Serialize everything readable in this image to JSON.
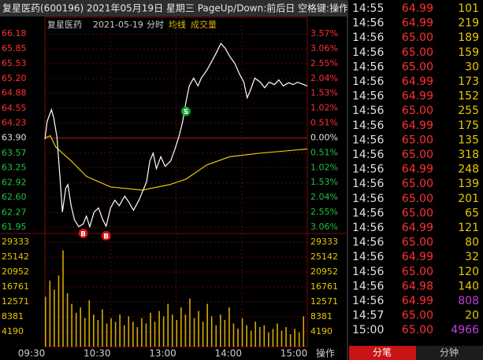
{
  "header": {
    "title": "复星医药(600196) 2021年05月19日 星期三 PageUp/Down:前后日 空格键:操作"
  },
  "chart_data": {
    "type": "line",
    "stock": "复星医药",
    "date": "2021-05-19",
    "mode": "分时",
    "xlim": [
      0,
      240
    ],
    "xticks": [
      {
        "value": 0,
        "label": "09:30"
      },
      {
        "value": 60,
        "label": "10:30"
      },
      {
        "value": 120,
        "label": "13:00"
      },
      {
        "value": 180,
        "label": "14:00"
      },
      {
        "value": 240,
        "label": "15:00"
      }
    ],
    "ylim": [
      61.95,
      66.18
    ],
    "yticks": [
      66.18,
      65.85,
      65.53,
      {
        "value": 65.2,
        "label": "65.20"
      },
      64.88,
      64.55,
      64.23,
      {
        "value": 63.9,
        "label": "63.90"
      },
      63.57,
      63.25,
      62.92,
      {
        "value": 62.6,
        "label": "62.60"
      },
      62.27,
      61.95
    ],
    "y2lim": [
      -3.06,
      3.57
    ],
    "y2ticks": [
      {
        "value": 3.57,
        "label": "3.57%"
      },
      {
        "value": 3.06,
        "label": "3.06%"
      },
      {
        "value": 2.55,
        "label": "2.55%"
      },
      {
        "value": 2.04,
        "label": "2.04%"
      },
      {
        "value": 1.53,
        "label": "1.53%"
      },
      {
        "value": 1.02,
        "label": "1.02%"
      },
      {
        "value": 0.51,
        "label": "0.51%"
      },
      {
        "value": 0,
        "label": "0.00%"
      },
      {
        "value": -0.51,
        "label": "0.51%"
      },
      {
        "value": -1.02,
        "label": "1.02%"
      },
      {
        "value": -1.53,
        "label": "1.53%"
      },
      {
        "value": -2.04,
        "label": "2.04%"
      },
      {
        "value": -2.55,
        "label": "2.55%"
      },
      {
        "value": -3.06,
        "label": "3.06%"
      }
    ],
    "grid": true,
    "series": [
      {
        "name": "复星医药",
        "color": "#ffffff",
        "x": [
          0,
          2,
          6,
          8,
          11,
          14,
          16,
          19,
          21,
          24,
          27,
          31,
          35,
          38,
          41,
          45,
          49,
          53,
          56,
          60,
          64,
          68,
          73,
          77,
          81,
          86,
          89,
          93,
          96,
          99,
          102,
          106,
          110,
          115,
          119,
          123,
          126,
          129,
          132,
          136,
          140,
          143,
          148,
          152,
          156,
          161,
          165,
          169,
          174,
          178,
          182,
          185,
          188,
          192,
          197,
          201,
          205,
          210,
          214,
          218,
          223,
          227,
          231,
          240
        ],
        "values": [
          63.87,
          64.26,
          64.52,
          64.35,
          63.92,
          62.97,
          62.28,
          62.8,
          62.88,
          62.42,
          62.11,
          61.96,
          62.02,
          62.19,
          61.96,
          62.28,
          62.37,
          62.11,
          61.97,
          62.37,
          62.54,
          62.42,
          62.63,
          62.49,
          62.32,
          62.54,
          62.71,
          62.94,
          63.4,
          63.57,
          63.23,
          63.49,
          63.28,
          63.4,
          63.66,
          63.97,
          64.26,
          64.69,
          65.04,
          65.21,
          65.04,
          65.21,
          65.38,
          65.55,
          65.73,
          65.97,
          65.86,
          65.69,
          65.52,
          65.3,
          65.12,
          64.78,
          64.95,
          65.21,
          65.12,
          65.0,
          65.12,
          65.07,
          65.17,
          65.04,
          65.11,
          65.07,
          65.12,
          65.04
        ]
      },
      {
        "name": "均线",
        "color": "#e8c800",
        "x": [
          0,
          5,
          10,
          24,
          38,
          60,
          89,
          114,
          129,
          148,
          169,
          197,
          240
        ],
        "values": [
          63.9,
          63.95,
          63.7,
          63.4,
          63.06,
          62.83,
          62.76,
          62.88,
          63.0,
          63.31,
          63.49,
          63.57,
          63.66
        ]
      }
    ],
    "volume": {
      "name": "成交量",
      "color": "#d4a800",
      "ylim": [
        0,
        29333
      ],
      "yticks": [
        29333,
        25142,
        20952,
        16761,
        12571,
        8381,
        4190
      ],
      "x": [
        0,
        4,
        8,
        12,
        16,
        20,
        24,
        28,
        32,
        36,
        40,
        44,
        48,
        52,
        56,
        60,
        64,
        68,
        72,
        76,
        80,
        84,
        88,
        92,
        96,
        100,
        104,
        108,
        112,
        116,
        120,
        124,
        128,
        132,
        136,
        140,
        144,
        148,
        152,
        156,
        160,
        164,
        168,
        172,
        176,
        180,
        184,
        188,
        192,
        196,
        200,
        204,
        208,
        212,
        216,
        220,
        224,
        228,
        232,
        236
      ],
      "values": [
        14000,
        18500,
        16000,
        20000,
        27000,
        15000,
        12000,
        9500,
        11000,
        8000,
        13000,
        9000,
        7500,
        10500,
        6500,
        8000,
        7000,
        9000,
        6000,
        8500,
        7000,
        5500,
        8000,
        6500,
        9500,
        7000,
        10000,
        8500,
        12000,
        9000,
        7500,
        11000,
        9000,
        13500,
        8000,
        10000,
        7000,
        12000,
        8500,
        6000,
        9000,
        7500,
        11000,
        6500,
        5000,
        8000,
        6000,
        4500,
        7000,
        5500,
        6000,
        4000,
        5000,
        6500,
        4500,
        5500,
        3500,
        5000,
        4000,
        8500
      ]
    },
    "annotations": [
      {
        "text": "B",
        "x": 35,
        "color": "#d01010"
      },
      {
        "text": "B",
        "x": 56,
        "color": "#d01010"
      },
      {
        "text": "S",
        "x": 129,
        "color": "#10a030"
      }
    ],
    "action": "操作"
  },
  "trades": {
    "rows": [
      {
        "time": "14:55",
        "price": "64.99",
        "volume": "101",
        "volume_color": "#e8c800"
      },
      {
        "time": "14:56",
        "price": "64.99",
        "volume": "219",
        "volume_color": "#e8c800"
      },
      {
        "time": "14:56",
        "price": "65.00",
        "volume": "189",
        "volume_color": "#e8c800"
      },
      {
        "time": "14:56",
        "price": "65.00",
        "volume": "159",
        "volume_color": "#e8c800"
      },
      {
        "time": "14:56",
        "price": "65.00",
        "volume": "30",
        "volume_color": "#e8c800"
      },
      {
        "time": "14:56",
        "price": "64.99",
        "volume": "173",
        "volume_color": "#e8c800"
      },
      {
        "time": "14:56",
        "price": "64.99",
        "volume": "152",
        "volume_color": "#e8c800"
      },
      {
        "time": "14:56",
        "price": "65.00",
        "volume": "255",
        "volume_color": "#e8c800"
      },
      {
        "time": "14:56",
        "price": "64.99",
        "volume": "175",
        "volume_color": "#e8c800"
      },
      {
        "time": "14:56",
        "price": "65.00",
        "volume": "135",
        "volume_color": "#e8c800"
      },
      {
        "time": "14:56",
        "price": "65.00",
        "volume": "318",
        "volume_color": "#e8c800"
      },
      {
        "time": "14:56",
        "price": "64.99",
        "volume": "248",
        "volume_color": "#e8c800"
      },
      {
        "time": "14:56",
        "price": "65.00",
        "volume": "139",
        "volume_color": "#e8c800"
      },
      {
        "time": "14:56",
        "price": "65.00",
        "volume": "201",
        "volume_color": "#e8c800"
      },
      {
        "time": "14:56",
        "price": "65.00",
        "volume": "65",
        "volume_color": "#e8c800"
      },
      {
        "time": "14:56",
        "price": "64.99",
        "volume": "121",
        "volume_color": "#e8c800"
      },
      {
        "time": "14:56",
        "price": "65.00",
        "volume": "80",
        "volume_color": "#e8c800"
      },
      {
        "time": "14:56",
        "price": "64.99",
        "volume": "32",
        "volume_color": "#e8c800"
      },
      {
        "time": "14:56",
        "price": "65.00",
        "volume": "120",
        "volume_color": "#e8c800"
      },
      {
        "time": "14:56",
        "price": "64.98",
        "volume": "140",
        "volume_color": "#e8c800"
      },
      {
        "time": "14:56",
        "price": "64.99",
        "volume": "808",
        "volume_color": "#c040e0"
      },
      {
        "time": "14:57",
        "price": "65.00",
        "volume": "20",
        "volume_color": "#e8c800"
      },
      {
        "time": "15:00",
        "price": "65.00",
        "volume": "4966",
        "volume_color": "#c040e0"
      }
    ],
    "tabs": [
      "分笔",
      "分钟"
    ]
  }
}
